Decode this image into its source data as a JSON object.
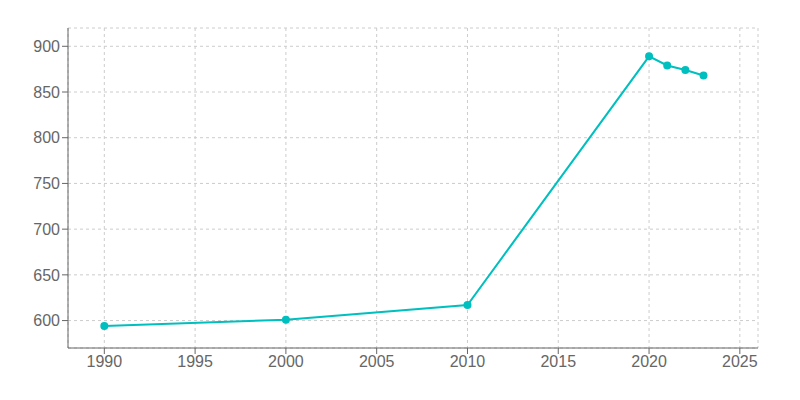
{
  "chart_data": {
    "type": "line",
    "x": [
      1990,
      2000,
      2010,
      2020,
      2021,
      2022,
      2023
    ],
    "values": [
      594,
      601,
      617,
      889,
      879,
      874,
      868
    ],
    "color": "#00BFBF",
    "marker": "circle",
    "xlim": [
      1988,
      2026
    ],
    "ylim": [
      570,
      920
    ],
    "xticks": [
      1990,
      1995,
      2000,
      2005,
      2010,
      2015,
      2020,
      2025
    ],
    "yticks": [
      600,
      650,
      700,
      750,
      800,
      850,
      900
    ],
    "grid": true
  }
}
